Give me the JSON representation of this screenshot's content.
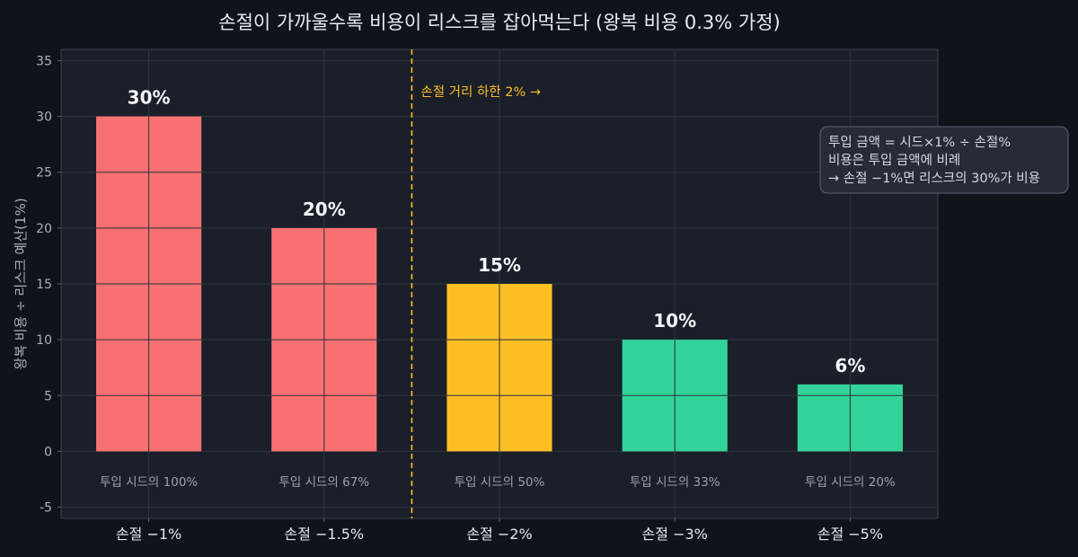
{
  "chart_data": {
    "type": "bar",
    "title": "손절이 가까울수록 비용이 리스크를 잡아먹는다 (왕복 비용 0.3% 가정)",
    "xlabel": "",
    "ylabel": "왕복 비용 ÷ 리스크 예산(1%)",
    "ylim": [
      -6,
      36
    ],
    "yticks": [
      "-5",
      "0",
      "5",
      "10",
      "15",
      "20",
      "25",
      "30",
      "35"
    ],
    "categories": [
      "손절 −1%",
      "손절 −1.5%",
      "손절 −2%",
      "손절 −3%",
      "손절 −5%"
    ],
    "values": [
      30,
      20,
      15,
      10,
      6
    ],
    "data_labels": [
      "30%",
      "20%",
      "15%",
      "10%",
      "6%"
    ],
    "sub_labels": [
      "투입 시드의 100%",
      "투입 시드의 67%",
      "투입 시드의 50%",
      "투입 시드의 33%",
      "투입 시드의 20%"
    ],
    "bar_colors": [
      "#f87171",
      "#f87171",
      "#fbbf24",
      "#34d399",
      "#34d399"
    ],
    "grid": true,
    "threshold": {
      "label": "손절 거리 하한 2% →",
      "between_categories": [
        1,
        2
      ],
      "color": "#fbbf24",
      "style": "dashed"
    },
    "annotation": {
      "lines": [
        "투입 금액 = 시드×1% ÷ 손절%",
        "비용은 투입 금액에 비례",
        "→ 손절 −1%면 리스크의 30%가 비용"
      ],
      "placement": "top-right"
    }
  },
  "colors": {
    "background": "#0f131a",
    "plot_background": "#1a1f29",
    "grid": "#2f3644",
    "text": "#e8ecf2"
  }
}
